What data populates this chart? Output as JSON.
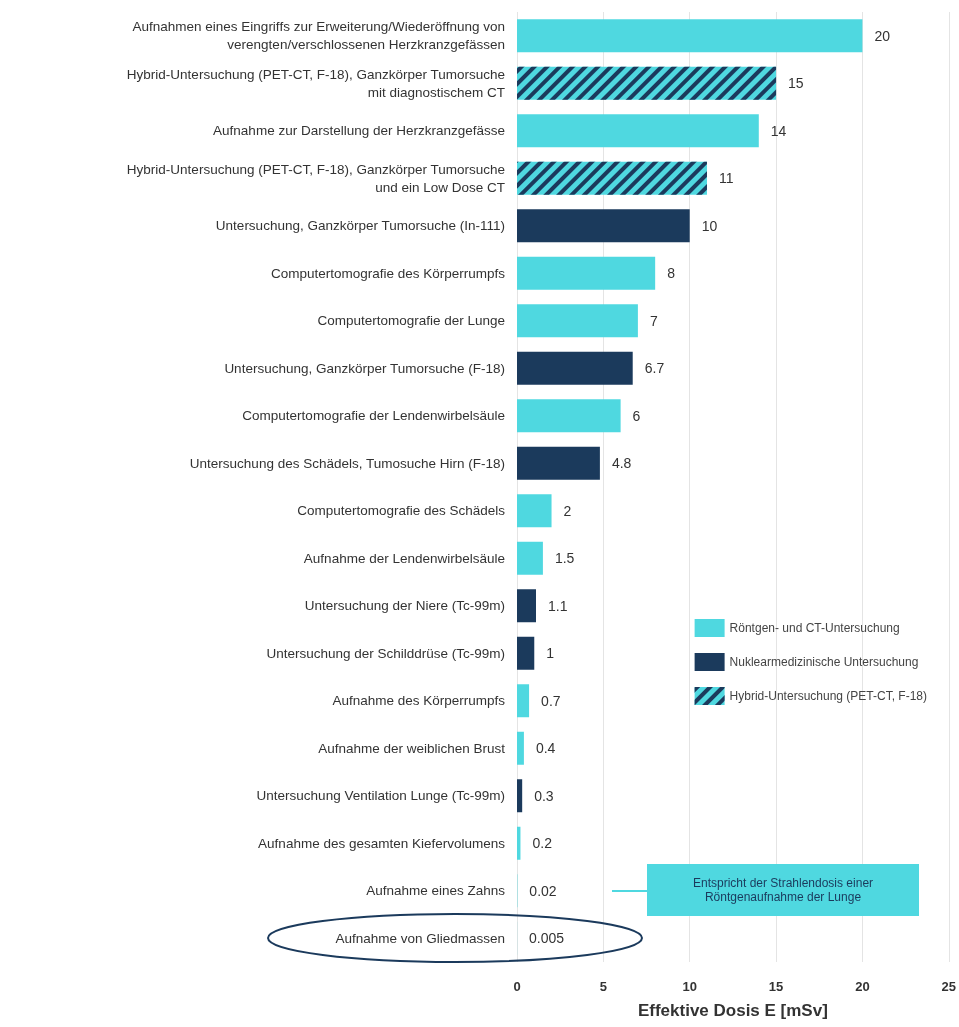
{
  "chart_data": {
    "type": "bar",
    "orientation": "horizontal",
    "xlabel": "Effektive Dosis E [mSv]",
    "categories": [
      "Aufnahmen eines Eingriffs zur Erweiterung/Wiederöffnung von\nverengten/verschlossenen Herzkranzgefässen",
      "Hybrid-Untersuchung (PET-CT, F-18), Ganzkörper Tumorsuche\nmit diagnostischem CT",
      "Aufnahme zur Darstellung der Herzkranzgefässe",
      "Hybrid-Untersuchung (PET-CT, F-18), Ganzkörper Tumorsuche\nund ein Low Dose CT",
      "Untersuchung, Ganzkörper Tumorsuche (In-111)",
      "Computertomografie des Körperrumpfs",
      "Computertomografie der Lunge",
      "Untersuchung, Ganzkörper Tumorsuche (F-18)",
      "Computertomografie der Lendenwirbelsäule",
      "Untersuchung des Schädels, Tumosuche Hirn (F-18)",
      "Computertomografie des Schädels",
      "Aufnahme der Lendenwirbelsäule",
      "Untersuchung der Niere (Tc-99m)",
      "Untersuchung der Schilddrüse (Tc-99m)",
      "Aufnahme des Körperrumpfs",
      "Aufnahme der weiblichen Brust",
      "Untersuchung Ventilation Lunge (Tc-99m)",
      "Aufnahme des gesamten Kiefervolumens",
      "Aufnahme eines Zahns",
      "Aufnahme von Gliedmassen"
    ],
    "series": [
      {
        "name": "Röntgen- und CT-Untersuchung",
        "color": "#4fd8e0",
        "values": [
          20,
          null,
          14,
          null,
          null,
          8,
          7,
          null,
          6,
          null,
          2,
          1.5,
          null,
          null,
          0.7,
          0.4,
          null,
          0.2,
          0.02,
          0.005
        ]
      },
      {
        "name": "Nuklearmedizinische Untersuchung",
        "color": "#1b3a5c",
        "values": [
          null,
          null,
          null,
          null,
          10,
          null,
          null,
          6.7,
          null,
          4.8,
          null,
          null,
          1.1,
          1,
          null,
          null,
          0.3,
          null,
          null,
          null
        ]
      },
      {
        "name": "Hybrid-Untersuchung (PET-CT, F-18)",
        "color": "#4fd8e0",
        "values": [
          null,
          15,
          null,
          11,
          null,
          null,
          null,
          null,
          null,
          null,
          null,
          null,
          null,
          null,
          null,
          null,
          null,
          null,
          null,
          null
        ]
      }
    ],
    "data_labels": true,
    "xlim": [
      0,
      25
    ],
    "xticks": [
      0,
      5,
      10,
      15,
      20,
      25
    ],
    "grid": "x",
    "legend": "right",
    "annotations": [
      "Entspricht der Strahlendosis einer Röntgenaufnahme der Lunge"
    ]
  }
}
